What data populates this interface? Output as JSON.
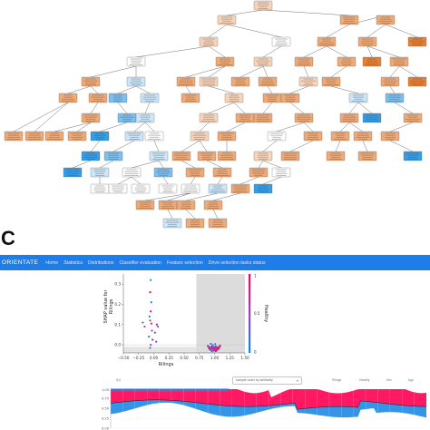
{
  "panel_letter": "C",
  "app": {
    "brand": "ORIENTATE",
    "nav": [
      "Home",
      "Statistics",
      "Distributions",
      "Classifier evaluation",
      "Feature selection",
      "Drive selection tasks status"
    ]
  },
  "tree": {
    "node_count": 94,
    "palette": {
      "orange_dark": "#e58139",
      "orange_mid": "#eeab7a",
      "orange_light": "#f6d5bc",
      "blue_dark": "#399de5",
      "blue_mid": "#7fbfee",
      "blue_light": "#cde6f8",
      "white": "#fdfdfd"
    }
  },
  "shap_chart": {
    "ylabel": "SHAP value for\nRilings",
    "xlabel": "Rilings",
    "xticks": [
      "−0.50",
      "−0.25",
      "0.00",
      "0.25",
      "0.50",
      "0.75",
      "1.00",
      "1.25",
      "1.50"
    ],
    "yticks": [
      "0.3",
      "0.2",
      "0.1",
      "0.0"
    ],
    "colorbar_label": "Healthy",
    "colorbar_ticks": [
      "1",
      "0.5",
      "0"
    ],
    "colors": {
      "high": "#ff0052",
      "low": "#008bfb"
    }
  },
  "chart_data": {
    "type": "scatter",
    "xlabel": "Rilings",
    "ylabel": "SHAP value for Rilings",
    "xlim": [
      -0.5,
      1.5
    ],
    "ylim": [
      -0.04,
      0.35
    ],
    "colorbar": {
      "label": "Healthy",
      "range": [
        0,
        1
      ]
    },
    "series": [
      {
        "points": [
          {
            "x": -0.05,
            "y": 0.32,
            "c": 0.0
          },
          {
            "x": -0.06,
            "y": 0.26,
            "c": 1.0
          },
          {
            "x": -0.04,
            "y": 0.21,
            "c": 0.2
          },
          {
            "x": -0.05,
            "y": 0.165,
            "c": 0.9
          },
          {
            "x": -0.07,
            "y": 0.14,
            "c": 0.1
          },
          {
            "x": -0.06,
            "y": 0.12,
            "c": 0.7
          },
          {
            "x": -0.04,
            "y": 0.105,
            "c": 0.8
          },
          {
            "x": -0.18,
            "y": 0.11,
            "c": 0.1
          },
          {
            "x": -0.15,
            "y": 0.09,
            "c": 0.5
          },
          {
            "x": 0.05,
            "y": 0.1,
            "c": 0.9
          },
          {
            "x": 0.07,
            "y": 0.09,
            "c": 0.3
          },
          {
            "x": -0.03,
            "y": 0.07,
            "c": 0.6
          },
          {
            "x": 0.02,
            "y": 0.06,
            "c": 0.2
          },
          {
            "x": -0.08,
            "y": 0.04,
            "c": 0.1
          },
          {
            "x": -0.02,
            "y": 0.025,
            "c": 0.8
          },
          {
            "x": 0.04,
            "y": 0.015,
            "c": 0.3
          },
          {
            "x": -0.05,
            "y": 0.0,
            "c": 0.4
          },
          {
            "x": -0.06,
            "y": -0.015,
            "c": 0.0
          },
          {
            "x": 0.9,
            "y": -0.01,
            "c": 0.9
          },
          {
            "x": 0.93,
            "y": -0.012,
            "c": 0.2
          },
          {
            "x": 0.96,
            "y": -0.008,
            "c": 1.0
          },
          {
            "x": 0.99,
            "y": -0.011,
            "c": 0.5
          },
          {
            "x": 1.02,
            "y": -0.009,
            "c": 0.9
          },
          {
            "x": 1.05,
            "y": -0.012,
            "c": 0.1
          },
          {
            "x": 1.08,
            "y": -0.01,
            "c": 0.8
          },
          {
            "x": 0.91,
            "y": -0.016,
            "c": 0.7
          },
          {
            "x": 0.95,
            "y": -0.017,
            "c": 0.9
          },
          {
            "x": 0.98,
            "y": -0.016,
            "c": 0.2
          },
          {
            "x": 1.01,
            "y": -0.018,
            "c": 1.0
          },
          {
            "x": 1.04,
            "y": -0.015,
            "c": 0.4
          },
          {
            "x": 1.07,
            "y": -0.017,
            "c": 0.9
          },
          {
            "x": 0.92,
            "y": -0.022,
            "c": 0.6
          },
          {
            "x": 0.97,
            "y": -0.021,
            "c": 0.9
          },
          {
            "x": 1.0,
            "y": -0.023,
            "c": 0.3
          },
          {
            "x": 1.03,
            "y": -0.022,
            "c": 0.8
          },
          {
            "x": 1.06,
            "y": -0.02,
            "c": 1.0
          },
          {
            "x": 0.94,
            "y": -0.027,
            "c": 0.1
          },
          {
            "x": 0.99,
            "y": -0.028,
            "c": 0.9
          },
          {
            "x": 1.04,
            "y": -0.026,
            "c": 0.7
          },
          {
            "x": 0.96,
            "y": -0.032,
            "c": 0.0
          },
          {
            "x": 1.02,
            "y": -0.031,
            "c": 0.9
          },
          {
            "x": 0.89,
            "y": -0.005,
            "c": 0.2
          },
          {
            "x": 1.09,
            "y": -0.004,
            "c": 0.9
          },
          {
            "x": 0.97,
            "y": -0.002,
            "c": 0.0
          },
          {
            "x": 1.01,
            "y": 0.003,
            "c": 0.1
          },
          {
            "x": 0.94,
            "y": 0.005,
            "c": 0.3
          }
        ]
      }
    ],
    "highlight_region": {
      "x": [
        0.7,
        1.5
      ]
    }
  },
  "toolbar": {
    "select_value": "sample order by similarity",
    "labels": [
      "f(x)",
      "Rilings",
      "Healthy",
      "Sex",
      "Age"
    ]
  },
  "profile_chart": {
    "yticks": [
      "1.00",
      "0.75",
      "0.50",
      "0.25",
      "0.00"
    ],
    "colors": {
      "positive": "#ff0052",
      "negative": "#1e88e5"
    }
  }
}
